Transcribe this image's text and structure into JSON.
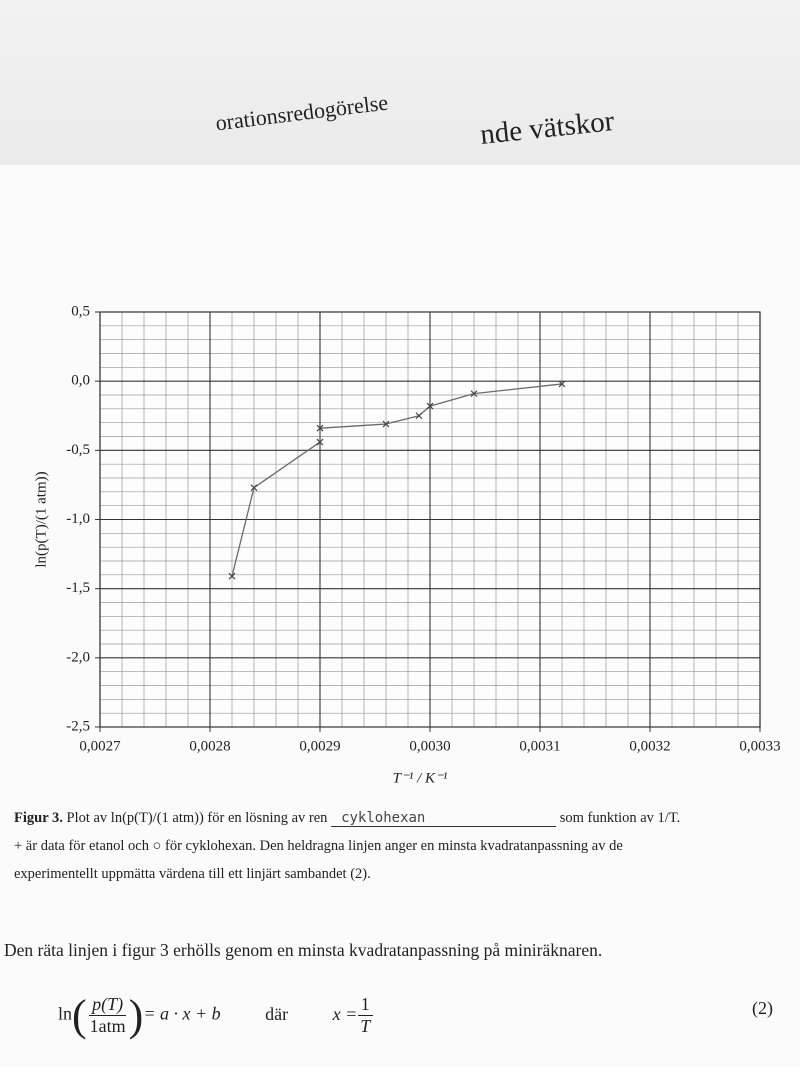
{
  "document": {
    "header_left": "orationsredogörelse",
    "header_right": "nde vätskor",
    "caption": {
      "label": "Figur 3.",
      "text_before": "Plot av ln(p(T)/(1 atm)) för en lösning av ren",
      "handwritten": "cyklohexan",
      "text_after": "som funktion av 1/T.",
      "line2": "+ är data för etanol och ○ för cyklohexan. Den heldragna linjen anger en minsta kvadratanpassning av de",
      "line3": "experimentellt uppmätta värdena till ett linjärt sambandet (2)."
    },
    "body": "Den räta linjen i figur 3 erhölls genom en minsta kvadratanpassning på miniräknaren.",
    "equation": {
      "ln": "ln",
      "numerator": "p(T)",
      "denominator": "1atm",
      "rhs": "= a · x + b",
      "where": "där",
      "x": "x =",
      "one": "1",
      "T": "T",
      "number": "(2)"
    }
  },
  "chart_data": {
    "type": "line",
    "x_label": "T⁻¹ / K⁻¹",
    "y_label": "ln(p(T)/(1 atm))",
    "x": [
      0.00282,
      0.00284,
      0.0029,
      0.0029,
      0.00296,
      0.00299,
      0.003,
      0.00304,
      0.00312
    ],
    "series": [
      {
        "color": "#6a6a6a",
        "values": [
          -1.41,
          -0.77,
          -0.44,
          -0.34,
          -0.31,
          -0.25,
          -0.18,
          -0.09,
          -0.02
        ]
      }
    ],
    "xlim": [
      0.0027,
      0.0033
    ],
    "xticks": [
      {
        "value": 0.0027,
        "label": "0,0027"
      },
      {
        "value": 0.0028,
        "label": "0,0028"
      },
      {
        "value": 0.0029,
        "label": "0,0029"
      },
      {
        "value": 0.003,
        "label": "0,0030"
      },
      {
        "value": 0.0031,
        "label": "0,0031"
      },
      {
        "value": 0.0032,
        "label": "0,0032"
      },
      {
        "value": 0.0033,
        "label": "0,0033"
      }
    ],
    "ylim": [
      -2.5,
      0.5
    ],
    "yticks": [
      {
        "value": -2.5,
        "label": "-2,5"
      },
      {
        "value": -2,
        "label": "-2,0"
      },
      {
        "value": -1.5,
        "label": "-1,5"
      },
      {
        "value": -1,
        "label": "-1,0"
      },
      {
        "value": -0.5,
        "label": "-0,5"
      },
      {
        "value": 0,
        "label": "0,0"
      },
      {
        "value": 0.5,
        "label": "0,5"
      }
    ],
    "grid": true
  }
}
